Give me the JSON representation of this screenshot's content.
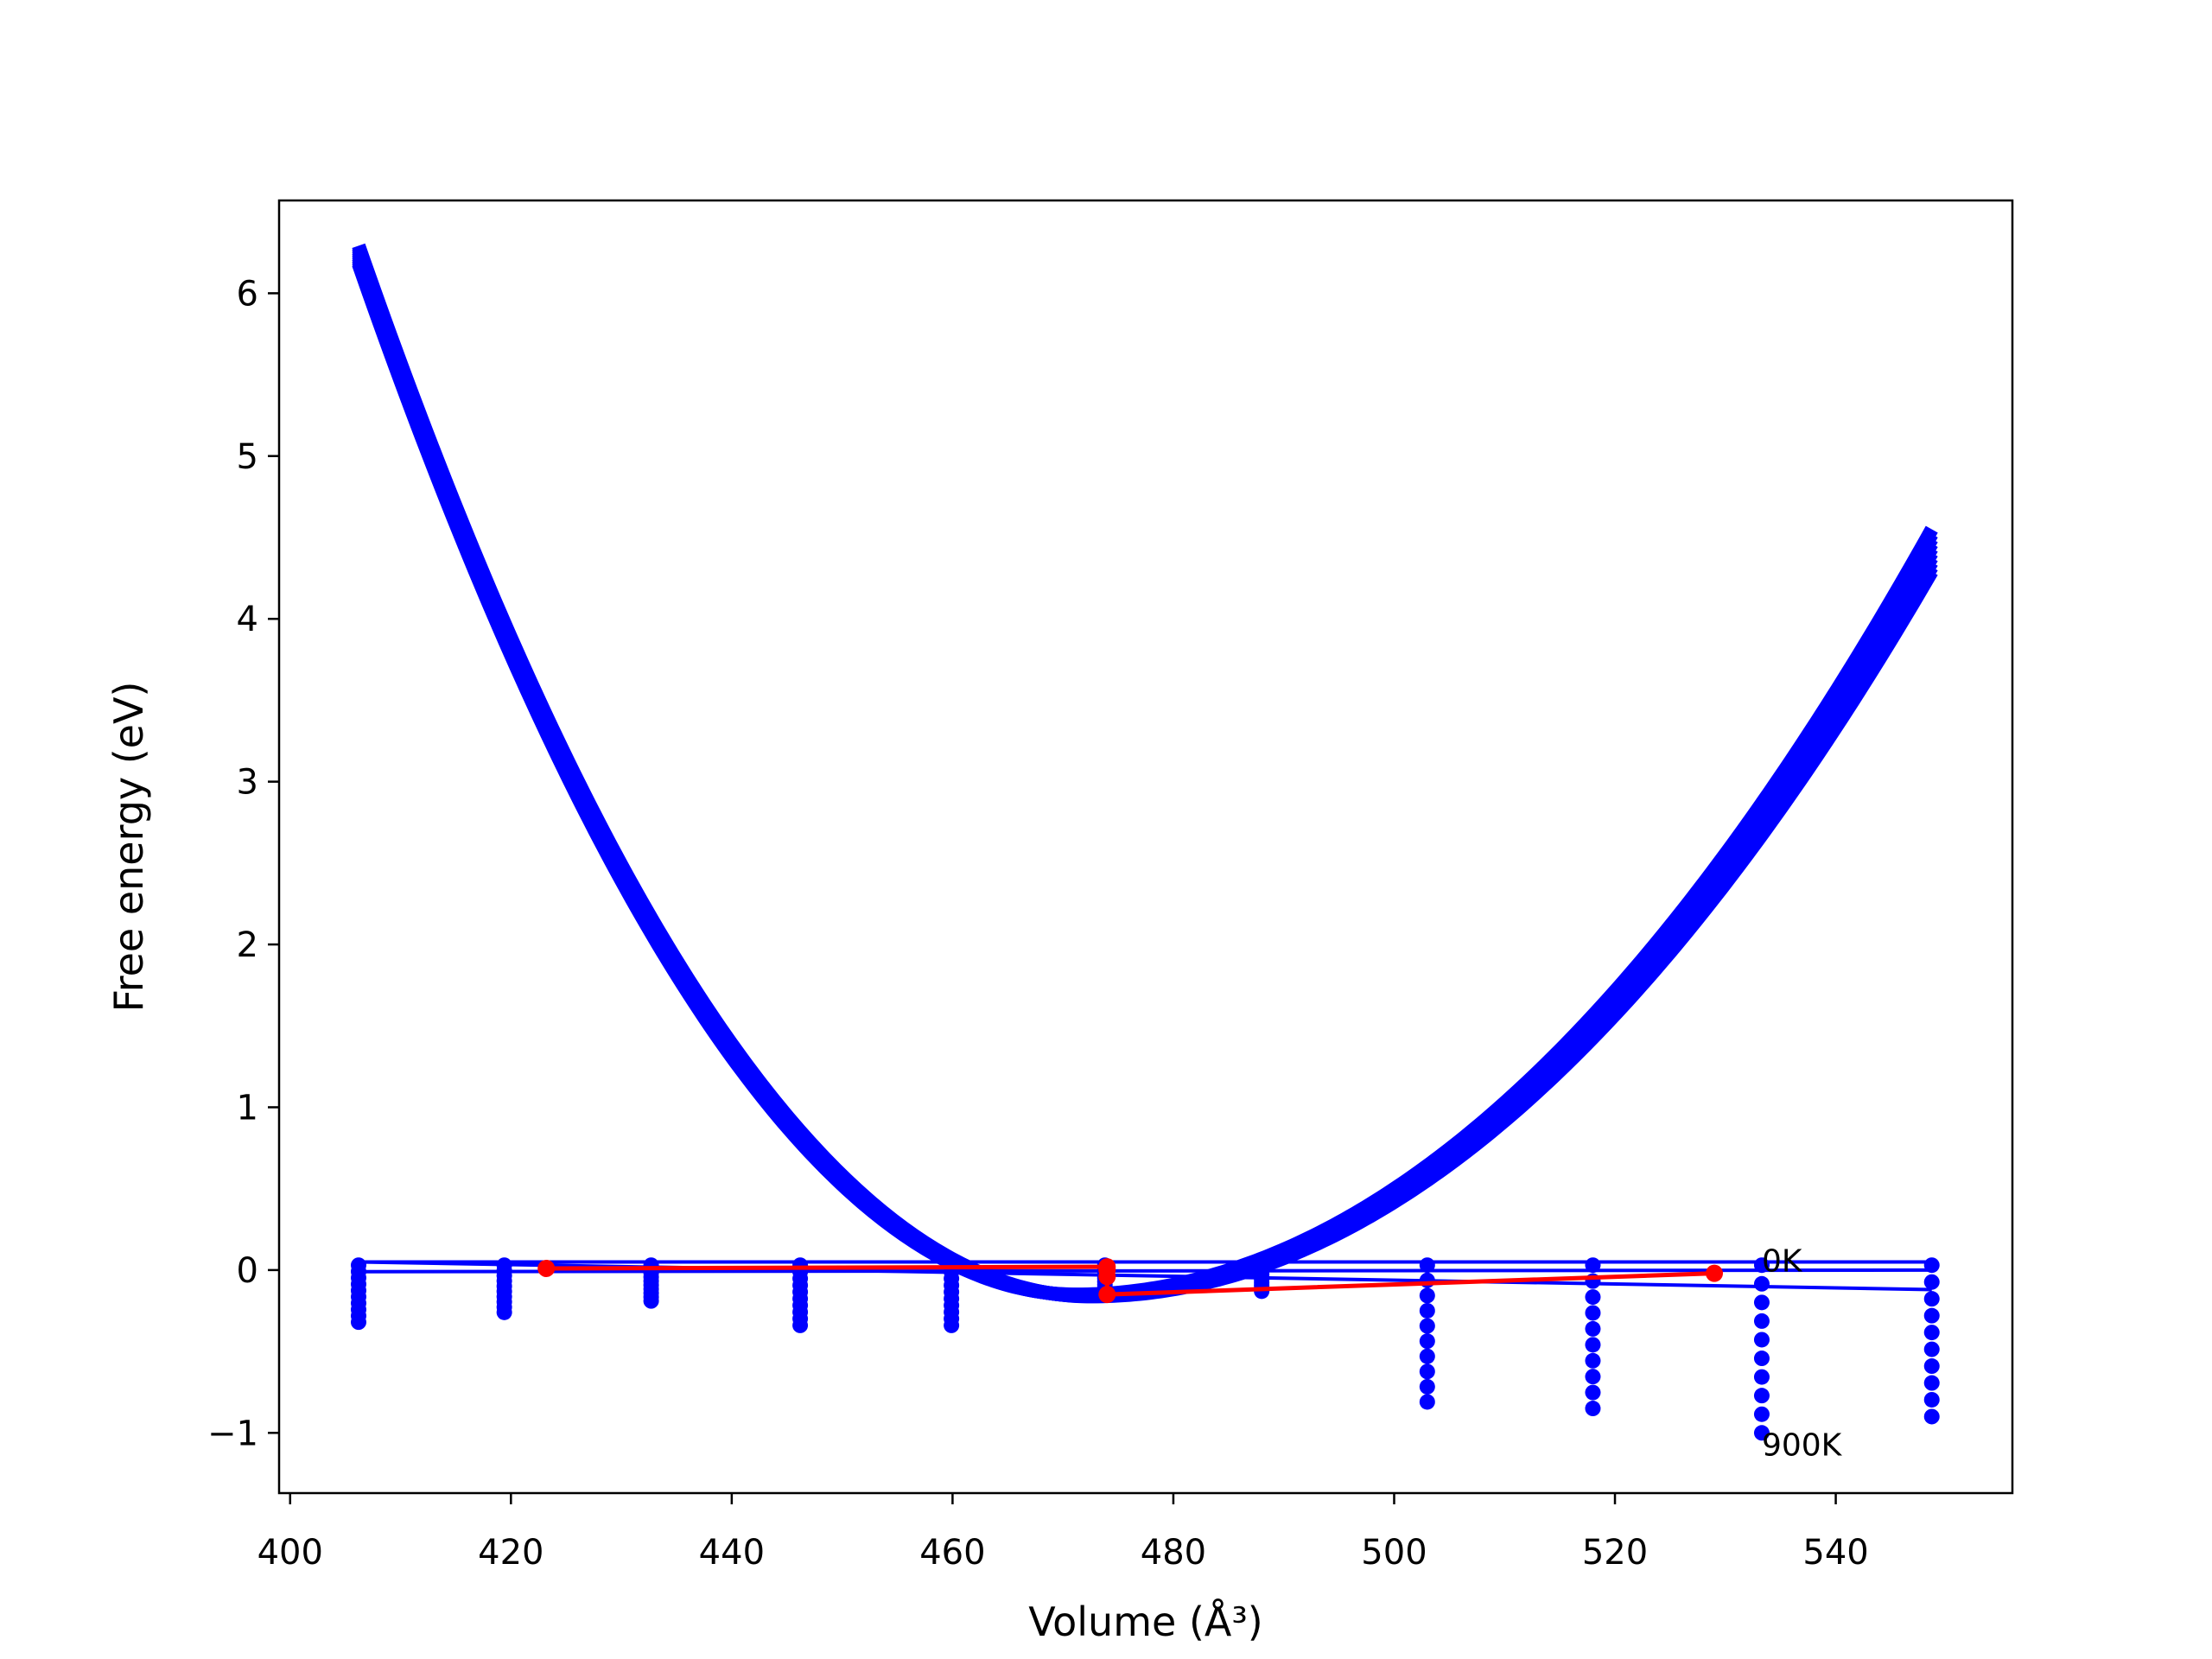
{
  "chart_data": {
    "type": "scatter",
    "title": "",
    "xlabel": "Volume (Å³)",
    "ylabel": "Free energy (eV)",
    "xlim": [
      399,
      556
    ],
    "ylim": [
      -1.37,
      6.57
    ],
    "xticks": [
      400,
      420,
      440,
      460,
      480,
      500,
      520,
      540
    ],
    "yticks": [
      -1,
      0,
      1,
      2,
      3,
      4,
      5,
      6
    ],
    "xtick_labels": [
      "400",
      "420",
      "440",
      "460",
      "480",
      "500",
      "520",
      "540"
    ],
    "ytick_labels": [
      "−1",
      "0",
      "1",
      "2",
      "3",
      "4",
      "5",
      "6"
    ],
    "grid": false,
    "colors": {
      "series": "#0000ff",
      "equilibrium": "#ff0000"
    },
    "annotations": [
      {
        "text": "0K",
        "x": 533.3,
        "y": 0.06
      },
      {
        "text": "900K",
        "x": 533.3,
        "y": -1.07
      }
    ],
    "volumes": [
      406.2,
      419.4,
      432.7,
      446.2,
      459.9,
      473.8,
      488.0,
      503.0,
      518.0,
      533.3,
      548.7
    ],
    "energy_min": [
      -0.32,
      -0.26,
      -0.19,
      -0.34,
      -0.34,
      -0.15,
      -0.13,
      -0.81,
      -0.85,
      -1.0,
      -0.9
    ],
    "fit_curve": {
      "v0": 471.2,
      "e0": -0.15,
      "temperatures": 10,
      "x": [
        406.2,
        420,
        440,
        460,
        471.2,
        480,
        500,
        520,
        540,
        548.7
      ],
      "y": [
        6.18,
        3.73,
        1.11,
        0.04,
        -0.15,
        0.11,
        0.91,
        2.12,
        3.71,
        4.55
      ]
    },
    "isotherm_lines": [
      {
        "y_start": 0.05,
        "y_end": 0.05
      },
      {
        "y_start": -0.01,
        "y_end": 0.0
      },
      {
        "y_start": 0.05,
        "y_end": -0.12
      }
    ],
    "equilibrium_series": {
      "x": [
        423.2,
        474.0,
        474.0,
        474.0,
        474.0,
        529.0
      ],
      "y": [
        0.01,
        0.02,
        0.0,
        -0.04,
        -0.15,
        -0.02
      ]
    }
  }
}
